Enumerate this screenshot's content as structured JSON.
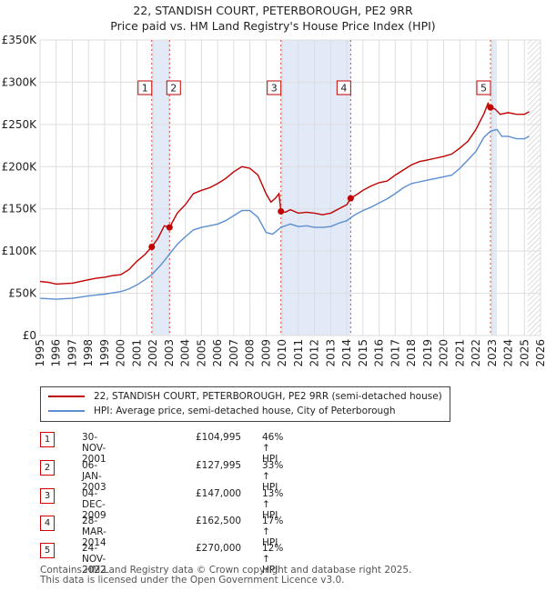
{
  "title_line1": "22, STANDISH COURT, PETERBOROUGH, PE2 9RR",
  "title_line2": "Price paid vs. HM Land Registry's House Price Index (HPI)",
  "chart_data": {
    "type": "line",
    "x_range": [
      1995,
      2026
    ],
    "y_range": [
      0,
      350000
    ],
    "y_ticks": [
      {
        "value": 0,
        "label": "£0"
      },
      {
        "value": 50000,
        "label": "£50K"
      },
      {
        "value": 100000,
        "label": "£100K"
      },
      {
        "value": 150000,
        "label": "£150K"
      },
      {
        "value": 200000,
        "label": "£200K"
      },
      {
        "value": 250000,
        "label": "£250K"
      },
      {
        "value": 300000,
        "label": "£300K"
      },
      {
        "value": 350000,
        "label": "£350K"
      }
    ],
    "x_ticks": [
      "1995",
      "1996",
      "1997",
      "1998",
      "1999",
      "2000",
      "2001",
      "2002",
      "2003",
      "2004",
      "2005",
      "2006",
      "2007",
      "2008",
      "2009",
      "2010",
      "2011",
      "2012",
      "2013",
      "2014",
      "2015",
      "2016",
      "2017",
      "2018",
      "2019",
      "2020",
      "2021",
      "2022",
      "2023",
      "2024",
      "2025",
      "2026"
    ],
    "grid": true,
    "shaded_periods": [
      [
        2001.92,
        2003.02
      ],
      [
        2009.92,
        2014.24
      ],
      [
        2022.9,
        2023.3
      ]
    ],
    "forecast_start": 2025.2,
    "series": [
      {
        "name": "22, STANDISH COURT, PETERBOROUGH, PE2 9RR (semi-detached house)",
        "color": "#c00000",
        "points": [
          [
            1995.0,
            64000
          ],
          [
            1995.5,
            63000
          ],
          [
            1996.0,
            61000
          ],
          [
            1996.5,
            61500
          ],
          [
            1997.0,
            62000
          ],
          [
            1997.5,
            64000
          ],
          [
            1998.0,
            66000
          ],
          [
            1998.5,
            68000
          ],
          [
            1999.0,
            69000
          ],
          [
            1999.5,
            71000
          ],
          [
            2000.0,
            72000
          ],
          [
            2000.5,
            78000
          ],
          [
            2001.0,
            88000
          ],
          [
            2001.5,
            96000
          ],
          [
            2001.92,
            104995
          ],
          [
            2002.3,
            115000
          ],
          [
            2002.7,
            130000
          ],
          [
            2003.02,
            127995
          ],
          [
            2003.5,
            145000
          ],
          [
            2004.0,
            155000
          ],
          [
            2004.5,
            168000
          ],
          [
            2005.0,
            172000
          ],
          [
            2005.5,
            175000
          ],
          [
            2006.0,
            180000
          ],
          [
            2006.5,
            186000
          ],
          [
            2007.0,
            194000
          ],
          [
            2007.5,
            200000
          ],
          [
            2008.0,
            198000
          ],
          [
            2008.5,
            190000
          ],
          [
            2009.0,
            168000
          ],
          [
            2009.3,
            158000
          ],
          [
            2009.6,
            163000
          ],
          [
            2009.8,
            168000
          ],
          [
            2009.92,
            147000
          ],
          [
            2010.2,
            146000
          ],
          [
            2010.5,
            149000
          ],
          [
            2011.0,
            145000
          ],
          [
            2011.5,
            146000
          ],
          [
            2012.0,
            145000
          ],
          [
            2012.5,
            143000
          ],
          [
            2013.0,
            145000
          ],
          [
            2013.5,
            150000
          ],
          [
            2014.0,
            155000
          ],
          [
            2014.24,
            162500
          ],
          [
            2014.7,
            168000
          ],
          [
            2015.0,
            172000
          ],
          [
            2015.5,
            177000
          ],
          [
            2016.0,
            181000
          ],
          [
            2016.5,
            183000
          ],
          [
            2017.0,
            190000
          ],
          [
            2017.5,
            196000
          ],
          [
            2018.0,
            202000
          ],
          [
            2018.5,
            206000
          ],
          [
            2019.0,
            208000
          ],
          [
            2019.5,
            210000
          ],
          [
            2020.0,
            212000
          ],
          [
            2020.5,
            215000
          ],
          [
            2021.0,
            222000
          ],
          [
            2021.5,
            230000
          ],
          [
            2022.0,
            244000
          ],
          [
            2022.5,
            263000
          ],
          [
            2022.75,
            275000
          ],
          [
            2022.9,
            270000
          ],
          [
            2023.2,
            268000
          ],
          [
            2023.5,
            262000
          ],
          [
            2024.0,
            264000
          ],
          [
            2024.5,
            262000
          ],
          [
            2025.0,
            262000
          ],
          [
            2025.3,
            265000
          ]
        ]
      },
      {
        "name": "HPI: Average price, semi-detached house, City of Peterborough",
        "color": "#5b8fd0",
        "points": [
          [
            1995.0,
            44000
          ],
          [
            1995.5,
            43500
          ],
          [
            1996.0,
            43000
          ],
          [
            1996.5,
            43500
          ],
          [
            1997.0,
            44000
          ],
          [
            1997.5,
            45500
          ],
          [
            1998.0,
            47000
          ],
          [
            1998.5,
            48000
          ],
          [
            1999.0,
            49000
          ],
          [
            1999.5,
            50500
          ],
          [
            2000.0,
            52000
          ],
          [
            2000.5,
            55000
          ],
          [
            2001.0,
            60000
          ],
          [
            2001.5,
            66000
          ],
          [
            2001.92,
            72000
          ],
          [
            2002.5,
            84000
          ],
          [
            2003.0,
            96000
          ],
          [
            2003.5,
            108000
          ],
          [
            2004.0,
            117000
          ],
          [
            2004.5,
            125000
          ],
          [
            2005.0,
            128000
          ],
          [
            2005.5,
            130000
          ],
          [
            2006.0,
            132000
          ],
          [
            2006.5,
            136000
          ],
          [
            2007.0,
            142000
          ],
          [
            2007.5,
            148000
          ],
          [
            2008.0,
            148000
          ],
          [
            2008.5,
            140000
          ],
          [
            2009.0,
            122000
          ],
          [
            2009.4,
            120000
          ],
          [
            2009.92,
            128000
          ],
          [
            2010.5,
            132000
          ],
          [
            2011.0,
            129000
          ],
          [
            2011.5,
            130000
          ],
          [
            2012.0,
            128000
          ],
          [
            2012.5,
            128000
          ],
          [
            2013.0,
            129000
          ],
          [
            2013.5,
            133000
          ],
          [
            2014.0,
            136000
          ],
          [
            2014.5,
            143000
          ],
          [
            2015.0,
            148000
          ],
          [
            2015.5,
            152000
          ],
          [
            2016.0,
            157000
          ],
          [
            2016.5,
            162000
          ],
          [
            2017.0,
            168000
          ],
          [
            2017.5,
            175000
          ],
          [
            2018.0,
            180000
          ],
          [
            2018.5,
            182000
          ],
          [
            2019.0,
            184000
          ],
          [
            2019.5,
            186000
          ],
          [
            2020.0,
            188000
          ],
          [
            2020.5,
            190000
          ],
          [
            2021.0,
            198000
          ],
          [
            2021.5,
            208000
          ],
          [
            2022.0,
            218000
          ],
          [
            2022.5,
            235000
          ],
          [
            2022.9,
            242000
          ],
          [
            2023.3,
            244000
          ],
          [
            2023.6,
            236000
          ],
          [
            2024.0,
            236000
          ],
          [
            2024.5,
            233000
          ],
          [
            2025.0,
            233000
          ],
          [
            2025.3,
            236000
          ]
        ]
      }
    ],
    "sales": [
      {
        "label": "1",
        "x": 2001.92,
        "price": 104995
      },
      {
        "label": "2",
        "x": 2003.02,
        "price": 127995
      },
      {
        "label": "3",
        "x": 2009.92,
        "price": 147000
      },
      {
        "label": "4",
        "x": 2014.24,
        "price": 162500
      },
      {
        "label": "5",
        "x": 2022.9,
        "price": 270000
      }
    ]
  },
  "legend": {
    "series1": "22, STANDISH COURT, PETERBOROUGH, PE2 9RR (semi-detached house)",
    "series2": "HPI: Average price, semi-detached house, City of Peterborough"
  },
  "transactions": [
    {
      "num": "1",
      "date": "30-NOV-2001",
      "price": "£104,995",
      "hpi": "46% ↑ HPI"
    },
    {
      "num": "2",
      "date": "06-JAN-2003",
      "price": "£127,995",
      "hpi": "33% ↑ HPI"
    },
    {
      "num": "3",
      "date": "04-DEC-2009",
      "price": "£147,000",
      "hpi": "13% ↑ HPI"
    },
    {
      "num": "4",
      "date": "28-MAR-2014",
      "price": "£162,500",
      "hpi": "17% ↑ HPI"
    },
    {
      "num": "5",
      "date": "24-NOV-2022",
      "price": "£270,000",
      "hpi": "12% ↑ HPI"
    }
  ],
  "footer_line1": "Contains HM Land Registry data © Crown copyright and database right 2025.",
  "footer_line2": "This data is licensed under the Open Government Licence v3.0."
}
